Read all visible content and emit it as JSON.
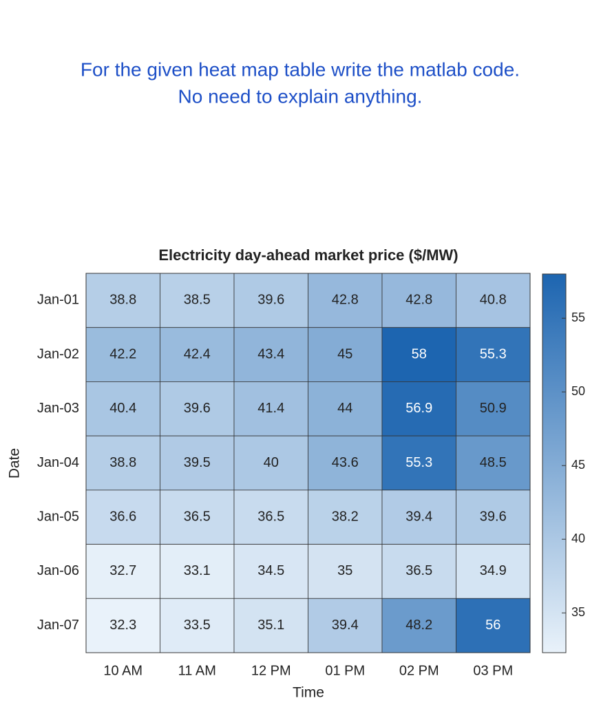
{
  "question_lines": [
    "For the given heat map table write the matlab code.",
    "No need to explain anything."
  ],
  "chart_data": {
    "type": "heatmap",
    "title": "Electricity day-ahead market price ($/MW)",
    "x_label": "Time",
    "y_label": "Date",
    "x_categories": [
      "10 AM",
      "11 AM",
      "12 PM",
      "01 PM",
      "02 PM",
      "03 PM"
    ],
    "y_categories": [
      "Jan-01",
      "Jan-02",
      "Jan-03",
      "Jan-04",
      "Jan-05",
      "Jan-06",
      "Jan-07"
    ],
    "values": [
      [
        38.8,
        38.5,
        39.6,
        42.8,
        42.8,
        40.8
      ],
      [
        42.2,
        42.4,
        43.4,
        45,
        58,
        55.3
      ],
      [
        40.4,
        39.6,
        41.4,
        44,
        56.9,
        50.9
      ],
      [
        38.8,
        39.5,
        40,
        43.6,
        55.3,
        48.5
      ],
      [
        36.6,
        36.5,
        36.5,
        38.2,
        39.4,
        39.6
      ],
      [
        32.7,
        33.1,
        34.5,
        35,
        36.5,
        34.9
      ],
      [
        32.3,
        33.5,
        35.1,
        39.4,
        48.2,
        56
      ]
    ],
    "clim": [
      32.3,
      58
    ],
    "cticks": [
      35,
      40,
      45,
      50,
      55
    ],
    "colormap": [
      "#e9f2fa",
      "#1d65b0"
    ]
  }
}
